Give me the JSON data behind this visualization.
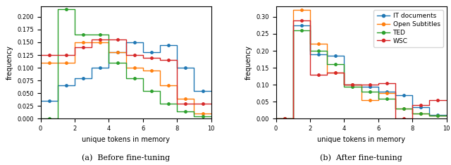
{
  "before": {
    "IT_documents": [
      0.035,
      0.065,
      0.08,
      0.1,
      0.13,
      0.15,
      0.13,
      0.145,
      0.1,
      0.055
    ],
    "Open_Subtitles": [
      0.11,
      0.11,
      0.15,
      0.15,
      0.13,
      0.1,
      0.095,
      0.065,
      0.04,
      0.01
    ],
    "TED": [
      0.0,
      0.215,
      0.165,
      0.165,
      0.11,
      0.08,
      0.055,
      0.03,
      0.015,
      0.005
    ],
    "WSC": [
      0.125,
      0.125,
      0.14,
      0.155,
      0.155,
      0.125,
      0.12,
      0.115,
      0.03,
      0.03
    ]
  },
  "after": {
    "IT_documents": [
      0.0,
      0.275,
      0.19,
      0.185,
      0.1,
      0.095,
      0.08,
      0.07,
      0.035,
      0.012
    ],
    "Open_Subtitles": [
      0.0,
      0.32,
      0.22,
      0.135,
      0.1,
      0.055,
      0.075,
      0.03,
      0.015,
      0.01
    ],
    "TED": [
      0.0,
      0.26,
      0.2,
      0.16,
      0.095,
      0.08,
      0.06,
      0.03,
      0.015,
      0.01
    ],
    "WSC": [
      0.0,
      0.29,
      0.13,
      0.135,
      0.1,
      0.1,
      0.105,
      0.0,
      0.04,
      0.055
    ]
  },
  "colors": {
    "IT_documents": "#1f77b4",
    "Open_Subtitles": "#ff7f0e",
    "TED": "#2ca02c",
    "WSC": "#d62728"
  },
  "labels": {
    "IT_documents": "IT documents",
    "Open_Subtitles": "Open Subtitles",
    "TED": "TED",
    "WSC": "WSC"
  },
  "bins": [
    0,
    1,
    2,
    3,
    4,
    5,
    6,
    7,
    8,
    9,
    10
  ],
  "xlabel": "unique tokens in memory",
  "ylabel": "frequency",
  "title_a": "(a)  Before fine-tuning",
  "title_b": "(b)  After fine-tuning",
  "ylim_a": [
    0.0,
    0.22
  ],
  "ylim_b": [
    0.0,
    0.33
  ]
}
